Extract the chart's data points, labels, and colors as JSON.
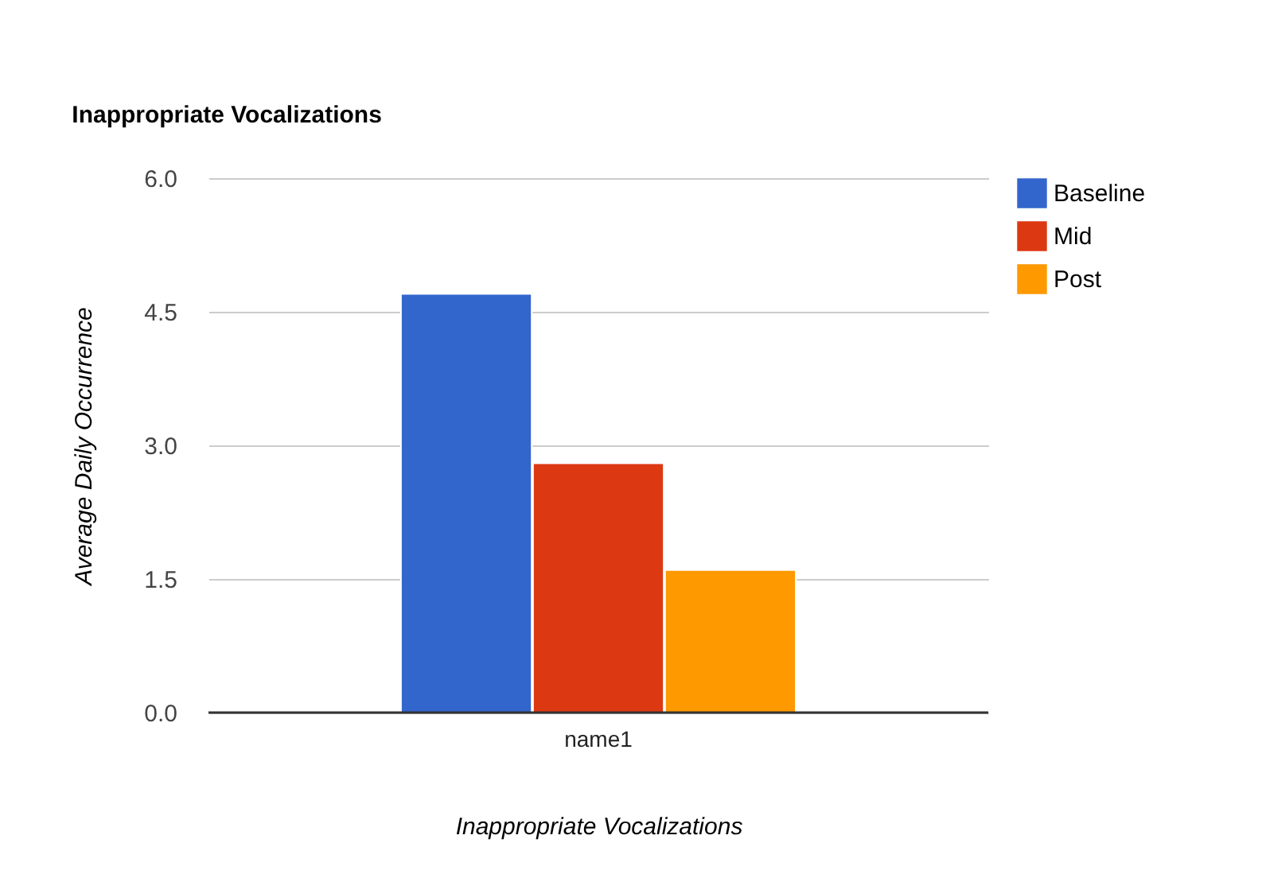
{
  "chart_data": {
    "type": "bar",
    "title": "Inappropriate Vocalizations",
    "xlabel": "Inappropriate Vocalizations",
    "ylabel": "Average Daily Occurrence",
    "categories": [
      "name1"
    ],
    "series": [
      {
        "name": "Baseline",
        "color": "#3366cc",
        "values": [
          4.7
        ]
      },
      {
        "name": "Mid",
        "color": "#dc3912",
        "values": [
          2.8
        ]
      },
      {
        "name": "Post",
        "color": "#ff9900",
        "values": [
          1.6
        ]
      }
    ],
    "ylim": [
      0,
      6
    ],
    "yticks": [
      {
        "value": 0,
        "label": "0.0"
      },
      {
        "value": 1.5,
        "label": "1.5"
      },
      {
        "value": 3,
        "label": "3.0"
      },
      {
        "value": 4.5,
        "label": "4.5"
      },
      {
        "value": 6,
        "label": "6.0"
      }
    ],
    "grid": "y",
    "legend": "top right"
  }
}
